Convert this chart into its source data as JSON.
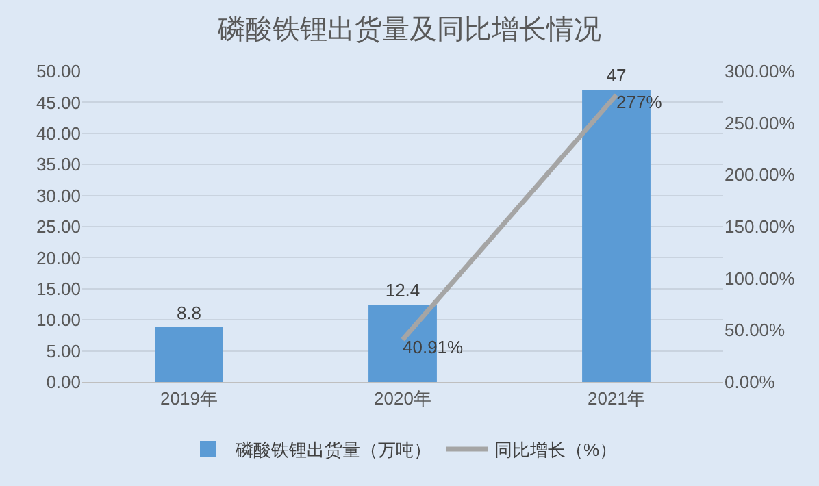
{
  "chart_data": {
    "type": "bar",
    "title": "磷酸铁锂出货量及同比增长情况",
    "categories": [
      "2019年",
      "2020年",
      "2021年"
    ],
    "series": [
      {
        "name": "磷酸铁锂出货量（万吨）",
        "color": "#5b9bd5",
        "values": [
          8.8,
          12.4,
          47
        ],
        "value_labels": [
          "8.8",
          "12.4",
          "47"
        ]
      },
      {
        "name": "同比增长（%）",
        "type": "line",
        "axis": "y2",
        "color": "#a5a5a5",
        "values": [
          null,
          40.91,
          277
        ],
        "value_labels": [
          null,
          "40.91%",
          "277%"
        ]
      }
    ],
    "ylim": [
      0,
      50
    ],
    "yticks": [
      {
        "value": 0,
        "label": "0.00"
      },
      {
        "value": 5,
        "label": "5.00"
      },
      {
        "value": 10,
        "label": "10.00"
      },
      {
        "value": 15,
        "label": "15.00"
      },
      {
        "value": 20,
        "label": "20.00"
      },
      {
        "value": 25,
        "label": "25.00"
      },
      {
        "value": 30,
        "label": "30.00"
      },
      {
        "value": 35,
        "label": "35.00"
      },
      {
        "value": 40,
        "label": "40.00"
      },
      {
        "value": 45,
        "label": "45.00"
      },
      {
        "value": 50,
        "label": "50.00"
      }
    ],
    "y2lim": [
      0,
      300
    ],
    "y2ticks": [
      {
        "value": 0,
        "label": "0.00%"
      },
      {
        "value": 50,
        "label": "50.00%"
      },
      {
        "value": 100,
        "label": "100.00%"
      },
      {
        "value": 150,
        "label": "150.00%"
      },
      {
        "value": 200,
        "label": "200.00%"
      },
      {
        "value": 250,
        "label": "250.00%"
      },
      {
        "value": 300,
        "label": "300.00%"
      }
    ],
    "grid": "y",
    "legend": "bottom",
    "marker": "none",
    "line_style": "solid"
  }
}
